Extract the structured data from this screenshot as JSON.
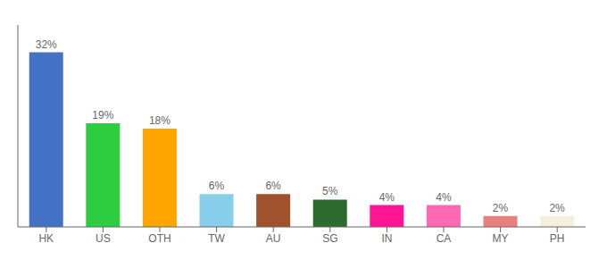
{
  "chart_data": {
    "type": "bar",
    "categories": [
      "HK",
      "US",
      "OTH",
      "TW",
      "AU",
      "SG",
      "IN",
      "CA",
      "MY",
      "PH"
    ],
    "values": [
      32,
      19,
      18,
      6,
      6,
      5,
      4,
      4,
      2,
      2
    ],
    "value_labels": [
      "32%",
      "19%",
      "18%",
      "6%",
      "6%",
      "5%",
      "4%",
      "4%",
      "2%",
      "2%"
    ],
    "colors": [
      "#4472c4",
      "#2ecc40",
      "#ffa500",
      "#87ceeb",
      "#a0522d",
      "#2d6a2d",
      "#ff1493",
      "#ff69b4",
      "#e88080",
      "#f5f0dc"
    ],
    "ylim": [
      0,
      37
    ],
    "data_labels": true,
    "tick_labels": "x",
    "grid": false
  }
}
